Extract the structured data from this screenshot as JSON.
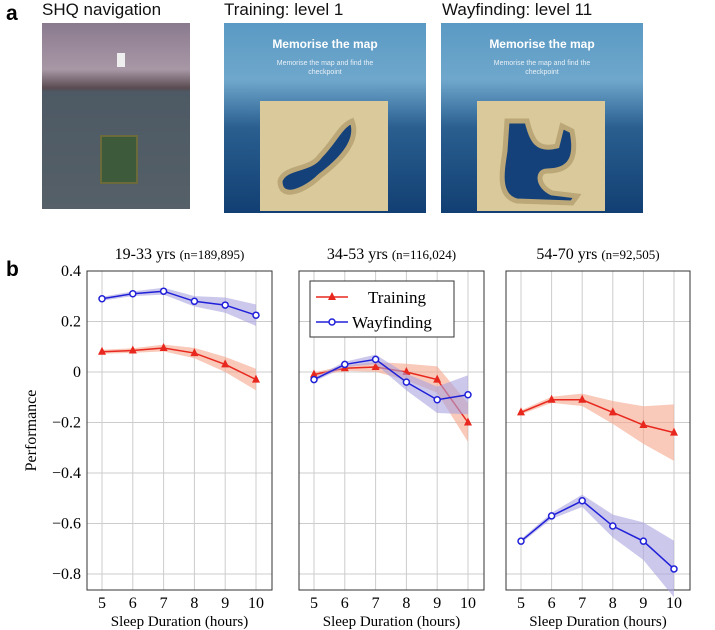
{
  "panel_a": {
    "label": "a",
    "images": [
      {
        "title": "SHQ navigation"
      },
      {
        "title": "Training: level 1",
        "heading": "Memorise the map",
        "sub": "Memorise the map and find the checkpoint"
      },
      {
        "title": "Wayfinding: level 11",
        "heading": "Memorise the map",
        "sub": "Memorise the map and find the checkpoint"
      }
    ]
  },
  "panel_b": {
    "label": "b"
  },
  "colors": {
    "training": "#e8281e",
    "wayfinding": "#2020d8",
    "training_band": "#f5a58a",
    "wayfinding_band": "#a9a4e0"
  },
  "chart_data": [
    {
      "type": "line",
      "title": "19-33 yrs",
      "subtitle": "(n=189,895)",
      "xlabel": "Sleep Duration (hours)",
      "ylabel": "Performance",
      "x": [
        5,
        6,
        7,
        8,
        9,
        10
      ],
      "ylim": [
        -0.8,
        0.4
      ],
      "yticks": [
        "0.4",
        "0.2",
        "0",
        "−0.2",
        "−0.4",
        "−0.6",
        "−0.8"
      ],
      "grid": true,
      "series": [
        {
          "name": "Training",
          "marker": "triangle",
          "values": [
            0.08,
            0.085,
            0.095,
            0.075,
            0.03,
            -0.03
          ]
        },
        {
          "name": "Wayfinding",
          "marker": "circle",
          "values": [
            0.29,
            0.31,
            0.32,
            0.28,
            0.265,
            0.225
          ]
        }
      ]
    },
    {
      "type": "line",
      "title": "34-53 yrs",
      "subtitle": "(n=116,024)",
      "xlabel": "Sleep Duration (hours)",
      "x": [
        5,
        6,
        7,
        8,
        9,
        10
      ],
      "ylim": [
        -0.8,
        0.4
      ],
      "grid": true,
      "legend": "top-left",
      "series": [
        {
          "name": "Training",
          "marker": "triangle",
          "values": [
            -0.01,
            0.015,
            0.02,
            0.0,
            -0.03,
            -0.2
          ]
        },
        {
          "name": "Wayfinding",
          "marker": "circle",
          "values": [
            -0.03,
            0.03,
            0.05,
            -0.04,
            -0.11,
            -0.09
          ]
        }
      ]
    },
    {
      "type": "line",
      "title": "54-70 yrs",
      "subtitle": "(n=92,505)",
      "xlabel": "Sleep Duration (hours)",
      "x": [
        5,
        6,
        7,
        8,
        9,
        10
      ],
      "ylim": [
        -0.8,
        0.4
      ],
      "grid": true,
      "series": [
        {
          "name": "Training",
          "marker": "triangle",
          "values": [
            -0.16,
            -0.11,
            -0.11,
            -0.16,
            -0.21,
            -0.24
          ]
        },
        {
          "name": "Wayfinding",
          "marker": "circle",
          "values": [
            -0.67,
            -0.57,
            -0.51,
            -0.61,
            -0.67,
            -0.78
          ]
        }
      ]
    }
  ]
}
